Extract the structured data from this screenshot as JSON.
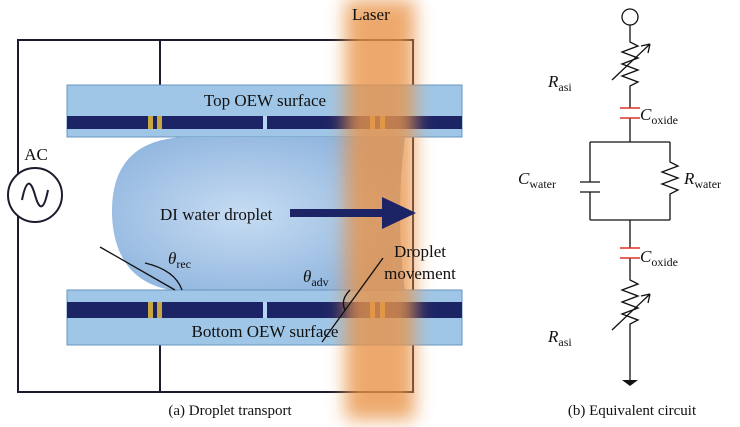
{
  "panel_a": {
    "laser": "Laser",
    "top_surface": "Top OEW surface",
    "source": "AC",
    "droplet": "DI water droplet",
    "movement": [
      "Droplet",
      "movement"
    ],
    "theta_rec": {
      "symbol": "θ",
      "subscript": "rec"
    },
    "theta_adv": {
      "symbol": "θ",
      "subscript": "adv"
    },
    "bottom_surface": "Bottom OEW surface",
    "caption": "(a)  Droplet transport"
  },
  "panel_b": {
    "r_asi_top": {
      "symbol": "R",
      "subscript": "asi"
    },
    "c_oxide_top": {
      "symbol": "C",
      "subscript": "oxide"
    },
    "c_water": {
      "symbol": "C",
      "subscript": "water"
    },
    "r_water": {
      "symbol": "R",
      "subscript": "water"
    },
    "c_oxide_bottom": {
      "symbol": "C",
      "subscript": "oxide"
    },
    "r_asi_bottom": {
      "symbol": "R",
      "subscript": "asi"
    },
    "caption": "(b)  Equivalent circuit"
  }
}
